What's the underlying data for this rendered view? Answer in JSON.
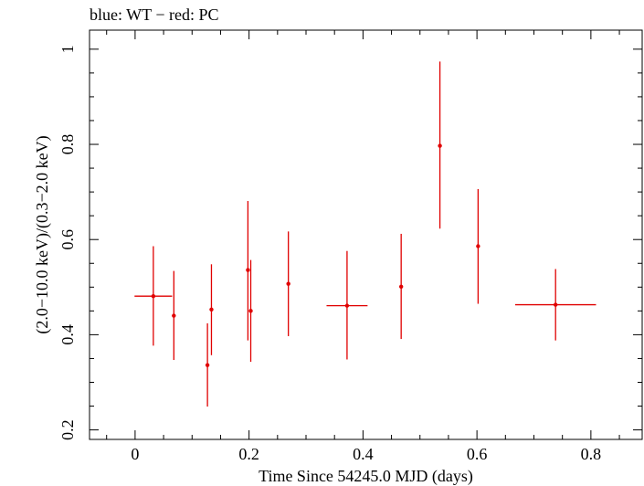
{
  "chart_data": {
    "type": "scatter",
    "title": "blue: WT − red: PC",
    "xlabel": "Time Since 54245.0 MJD (days)",
    "ylabel": "(2.0−10.0 keV)/(0.3−2.0 keV)",
    "xlim": [
      -0.08,
      0.89
    ],
    "ylim": [
      0.18,
      1.04
    ],
    "x_ticks": [
      0,
      0.2,
      0.4,
      0.6,
      0.8
    ],
    "x_tick_labels": [
      "0",
      "0.2",
      "0.4",
      "0.6",
      "0.8"
    ],
    "y_ticks": [
      0.2,
      0.4,
      0.6,
      0.8,
      1.0
    ],
    "y_tick_labels": [
      "0.2",
      "0.4",
      "0.6",
      "0.8",
      "1"
    ],
    "grid": false,
    "series": [
      {
        "name": "PC",
        "color": "#e00000",
        "points": [
          {
            "x": 0.032,
            "xerr": 0.033,
            "y": 0.481,
            "ylo": 0.377,
            "yhi": 0.586
          },
          {
            "x": 0.068,
            "xerr": 0.003,
            "y": 0.44,
            "ylo": 0.347,
            "yhi": 0.534
          },
          {
            "x": 0.127,
            "xerr": 0.002,
            "y": 0.336,
            "ylo": 0.249,
            "yhi": 0.424
          },
          {
            "x": 0.134,
            "xerr": 0.002,
            "y": 0.453,
            "ylo": 0.357,
            "yhi": 0.548
          },
          {
            "x": 0.198,
            "xerr": 0.002,
            "y": 0.536,
            "ylo": 0.388,
            "yhi": 0.681
          },
          {
            "x": 0.203,
            "xerr": 0.002,
            "y": 0.45,
            "ylo": 0.343,
            "yhi": 0.557
          },
          {
            "x": 0.269,
            "xerr": 0.002,
            "y": 0.507,
            "ylo": 0.397,
            "yhi": 0.617
          },
          {
            "x": 0.372,
            "xerr": 0.036,
            "y": 0.461,
            "ylo": 0.348,
            "yhi": 0.576
          },
          {
            "x": 0.467,
            "xerr": 0.002,
            "y": 0.501,
            "ylo": 0.391,
            "yhi": 0.612
          },
          {
            "x": 0.535,
            "xerr": 0.002,
            "y": 0.797,
            "ylo": 0.623,
            "yhi": 0.974
          },
          {
            "x": 0.602,
            "xerr": 0.003,
            "y": 0.586,
            "ylo": 0.465,
            "yhi": 0.706
          },
          {
            "x": 0.738,
            "xerr": 0.071,
            "y": 0.463,
            "ylo": 0.388,
            "yhi": 0.538
          }
        ]
      }
    ]
  }
}
